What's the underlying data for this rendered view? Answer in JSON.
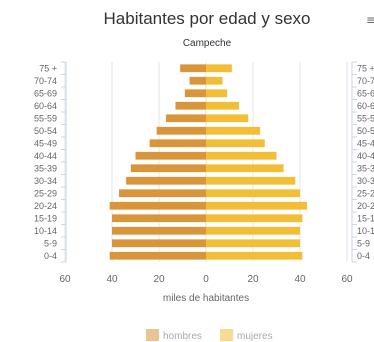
{
  "chart_data": {
    "type": "bar",
    "orientation": "horizontal-population-pyramid",
    "title": "Habitantes por edad y sexo",
    "subtitle": "Campeche",
    "xlabel": "miles de habitantes",
    "ylabel": "",
    "xlim": [
      -60,
      60
    ],
    "x_ticks": [
      "60",
      "40",
      "20",
      "0",
      "20",
      "40",
      "60"
    ],
    "grid": true,
    "legend_position": "bottom",
    "categories": [
      "75 +",
      "70-74",
      "65-69",
      "60-64",
      "55-59",
      "50-54",
      "45-49",
      "40-44",
      "35-39",
      "30-34",
      "25-29",
      "20-24",
      "15-19",
      "10-14",
      "5-9",
      "0-4"
    ],
    "series": [
      {
        "name": "hombres",
        "color": "#d9953a",
        "values": [
          11,
          7,
          9,
          13,
          17,
          21,
          24,
          30,
          32,
          34,
          37,
          41,
          40,
          40,
          40,
          41
        ]
      },
      {
        "name": "mujeres",
        "color": "#f2be36",
        "values": [
          11,
          7,
          9,
          14,
          18,
          23,
          25,
          30,
          33,
          38,
          40,
          43,
          41,
          40,
          40,
          41
        ]
      }
    ]
  },
  "ui": {
    "menu_icon": "≡",
    "menu_icon_name": "hamburger-menu-icon"
  }
}
